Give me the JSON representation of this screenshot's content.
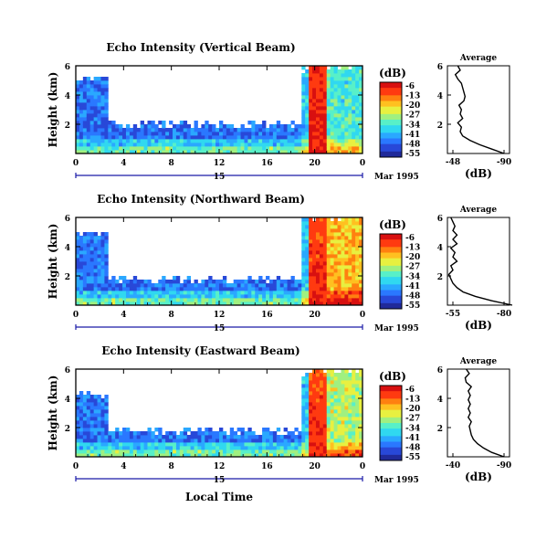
{
  "colors": {
    "scale": [
      "#202a9a",
      "#2848d8",
      "#2a78ff",
      "#2aa8ff",
      "#30d8f0",
      "#58f0c8",
      "#a0f080",
      "#e8f040",
      "#ffc020",
      "#ff8010",
      "#ff3a10",
      "#d81010"
    ],
    "frame": "#000000",
    "date_bar": "#1a1aa8"
  },
  "shared": {
    "date_tick_label": "15",
    "date_label": "Mar 1995",
    "x_ticks": [
      "0",
      "4",
      "8",
      "12",
      "16",
      "20",
      "0"
    ],
    "height_ticks": [
      "6",
      "4",
      "2"
    ],
    "xlabel": "Local Time",
    "colorbar_unit": "(dB)",
    "colorbar_ticks": [
      "-6",
      "-13",
      "-20",
      "-27",
      "-34",
      "-41",
      "-48",
      "-55"
    ],
    "avg_title": "Average",
    "avg_xlabel": "(dB)"
  },
  "chart_data": [
    {
      "type": "heatmap",
      "title": "Echo Intensity (Vertical Beam)",
      "ylabel": "Height (km)",
      "xlabel": "",
      "x_range": [
        0,
        24
      ],
      "y_range": [
        0,
        6
      ],
      "clim": [
        -55,
        -6
      ],
      "description_bands": [
        {
          "x_from": 0,
          "x_to": 2.8,
          "top_km": 5.1,
          "level": -45
        },
        {
          "x_from": 2.8,
          "x_to": 18.8,
          "top_km": 2.0,
          "level": -45
        },
        {
          "x_from": 18.8,
          "x_to": 19.6,
          "top_km": 5.8,
          "level": -38
        },
        {
          "x_from": 19.6,
          "x_to": 21.0,
          "top_km": 6.0,
          "level": -8
        },
        {
          "x_from": 21.0,
          "x_to": 24.0,
          "top_km": 6.0,
          "level": -34
        }
      ],
      "average": {
        "xlim": [
          -48,
          -90
        ],
        "xticks": [
          "-48",
          "-90"
        ],
        "height_km": [
          0.0,
          0.3,
          0.6,
          0.9,
          1.2,
          1.5,
          1.8,
          2.1,
          2.4,
          2.7,
          3.0,
          3.3,
          3.6,
          3.9,
          4.2,
          4.5,
          4.8,
          5.1,
          5.4,
          5.7,
          6.0
        ],
        "db": [
          -90,
          -80,
          -70,
          -62,
          -56,
          -54,
          -55,
          -52,
          -56,
          -54,
          -55,
          -53,
          -57,
          -58,
          -57,
          -56,
          -55,
          -52,
          -50,
          -54,
          -52
        ]
      }
    },
    {
      "type": "heatmap",
      "title": "Echo Intensity (Northward Beam)",
      "ylabel": "Height (km)",
      "xlabel": "",
      "x_range": [
        0,
        24
      ],
      "y_range": [
        0,
        6
      ],
      "clim": [
        -55,
        -6
      ],
      "description_bands": [
        {
          "x_from": 0,
          "x_to": 2.8,
          "top_km": 5.0,
          "level": -45
        },
        {
          "x_from": 2.8,
          "x_to": 18.8,
          "top_km": 1.8,
          "level": -45
        },
        {
          "x_from": 18.8,
          "x_to": 19.6,
          "top_km": 5.8,
          "level": -38
        },
        {
          "x_from": 19.6,
          "x_to": 21.0,
          "top_km": 6.0,
          "level": -10
        },
        {
          "x_from": 21.0,
          "x_to": 24.0,
          "top_km": 6.0,
          "level": -20
        }
      ],
      "average": {
        "xlim": [
          -55,
          -80
        ],
        "xticks": [
          "-55",
          "-80"
        ],
        "height_km": [
          0.0,
          0.3,
          0.6,
          0.9,
          1.2,
          1.5,
          1.8,
          2.1,
          2.4,
          2.7,
          3.0,
          3.3,
          3.6,
          3.9,
          4.2,
          4.5,
          4.8,
          5.1,
          5.4,
          5.7,
          6.0
        ],
        "db": [
          -84,
          -74,
          -66,
          -60,
          -57,
          -55,
          -54,
          -53,
          -55,
          -54,
          -57,
          -55,
          -56,
          -54,
          -57,
          -55,
          -57,
          -55,
          -56,
          -55,
          -54
        ]
      }
    },
    {
      "type": "heatmap",
      "title": "Echo Intensity (Eastward Beam)",
      "ylabel": "Height (km)",
      "xlabel": "Local Time",
      "x_range": [
        0,
        24
      ],
      "y_range": [
        0,
        6
      ],
      "clim": [
        -55,
        -6
      ],
      "description_bands": [
        {
          "x_from": 0,
          "x_to": 2.8,
          "top_km": 4.3,
          "level": -45
        },
        {
          "x_from": 2.8,
          "x_to": 18.8,
          "top_km": 1.8,
          "level": -45
        },
        {
          "x_from": 18.8,
          "x_to": 19.6,
          "top_km": 5.7,
          "level": -38
        },
        {
          "x_from": 19.6,
          "x_to": 21.0,
          "top_km": 6.0,
          "level": -10
        },
        {
          "x_from": 21.0,
          "x_to": 24.0,
          "top_km": 6.0,
          "level": -27
        }
      ],
      "average": {
        "xlim": [
          -40,
          -90
        ],
        "xticks": [
          "-40",
          "-90"
        ],
        "height_km": [
          0.0,
          0.3,
          0.6,
          0.9,
          1.2,
          1.5,
          1.8,
          2.1,
          2.4,
          2.7,
          3.0,
          3.3,
          3.6,
          3.9,
          4.2,
          4.5,
          4.8,
          5.1,
          5.4,
          5.7,
          6.0
        ],
        "db": [
          -90,
          -78,
          -70,
          -64,
          -60,
          -58,
          -57,
          -56,
          -58,
          -55,
          -57,
          -55,
          -57,
          -55,
          -57,
          -55,
          -58,
          -53,
          -52,
          -56,
          -53
        ]
      }
    }
  ]
}
